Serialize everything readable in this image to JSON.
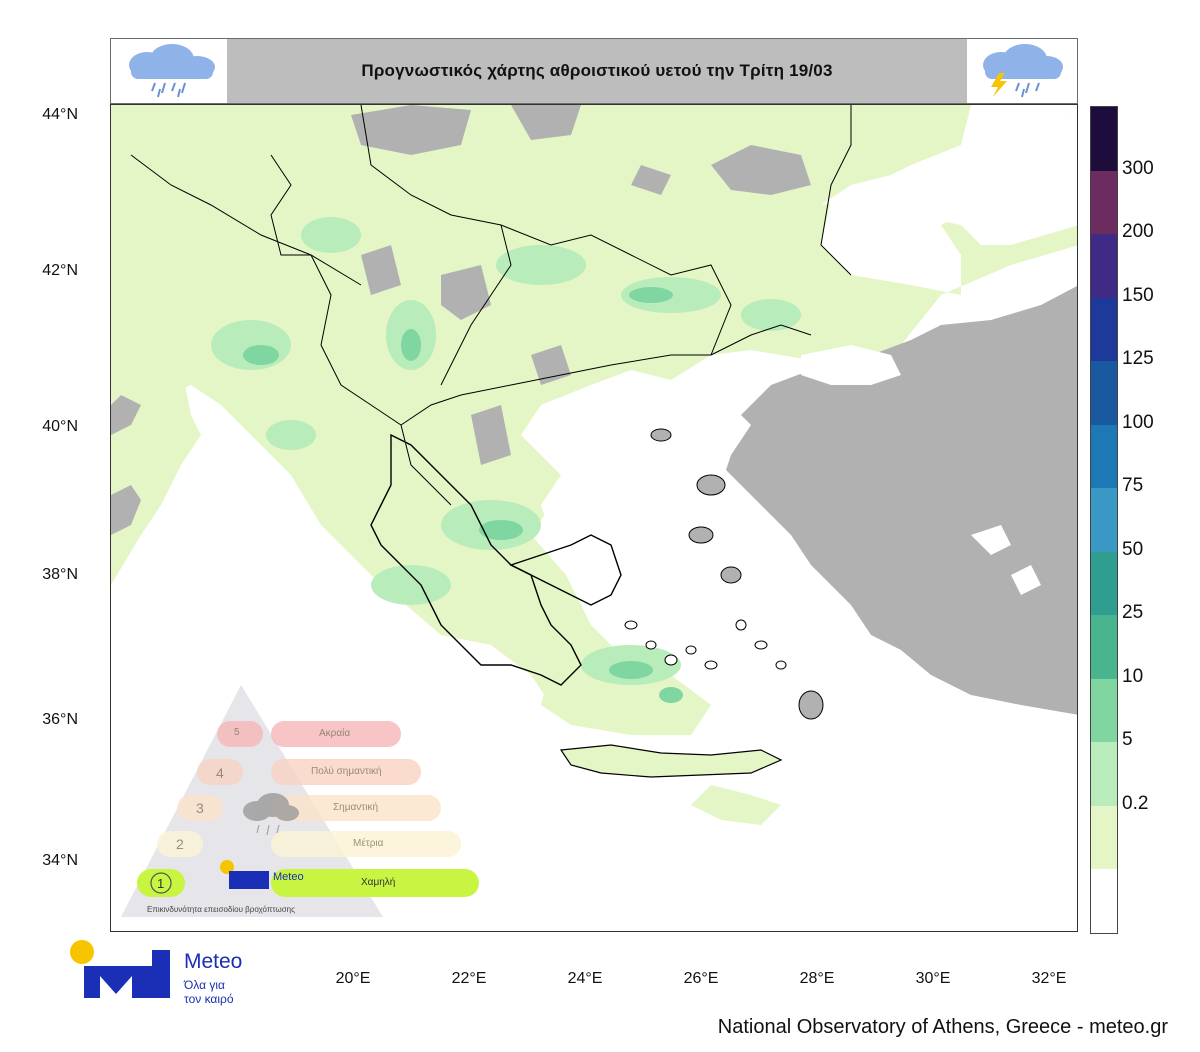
{
  "header": {
    "title": "Προγνωστικός χάρτης αθροιστικού υετού την Τρίτη 19/03",
    "left_icon": "rain-cloud-icon",
    "right_icon": "thunderstorm-cloud-icon"
  },
  "axes": {
    "latitude_labels": [
      "44°N",
      "42°N",
      "40°N",
      "38°N",
      "36°N",
      "34°N"
    ],
    "longitude_labels": [
      "20°E",
      "22°E",
      "24°E",
      "26°E",
      "28°E",
      "30°E",
      "32°E"
    ]
  },
  "colorbar": {
    "labels": [
      "300",
      "200",
      "150",
      "125",
      "100",
      "75",
      "50",
      "25",
      "10",
      "5",
      "0.2"
    ],
    "colors": [
      "#1e0c3d",
      "#6b2c5f",
      "#3f2a86",
      "#1d3a9b",
      "#1a58a0",
      "#1f78b6",
      "#3b97c4",
      "#2f9e91",
      "#49b48e",
      "#7fd6a1",
      "#b9ecbb",
      "#e4f5c6",
      "#ffffff"
    ]
  },
  "colors": {
    "land_no_rain": "#b1b1b1",
    "rain_light": "#e4f5c6",
    "rain_moderate": "#b9ecbb",
    "rain_heavy": "#7fd6a1",
    "rain_very_heavy": "#49b48e",
    "sea": "#ffffff",
    "brand_blue": "#1a2fb5",
    "brand_yellow": "#f7c400"
  },
  "legend": {
    "levels": [
      {
        "number": "5",
        "label": "Ακραία",
        "color": "#f5b6b6"
      },
      {
        "number": "4",
        "label": "Πολύ σημαντική",
        "color": "#f9d2c2"
      },
      {
        "number": "3",
        "label": "Σημαντική",
        "color": "#fbe3c9"
      },
      {
        "number": "2",
        "label": "Μέτρια",
        "color": "#fbf3d6"
      },
      {
        "number": "1",
        "label": "Χαμηλή",
        "color": "#c8f542"
      }
    ],
    "caption": "Επικινδυνότητα επεισοδίου βροχόπτωσης",
    "brand": "Meteo"
  },
  "logo": {
    "brand": "Meteo",
    "tagline_line1": "Όλα για",
    "tagline_line2": "τον καιρό"
  },
  "footer": {
    "credit": "National Observatory of Athens, Greece - meteo.gr"
  }
}
